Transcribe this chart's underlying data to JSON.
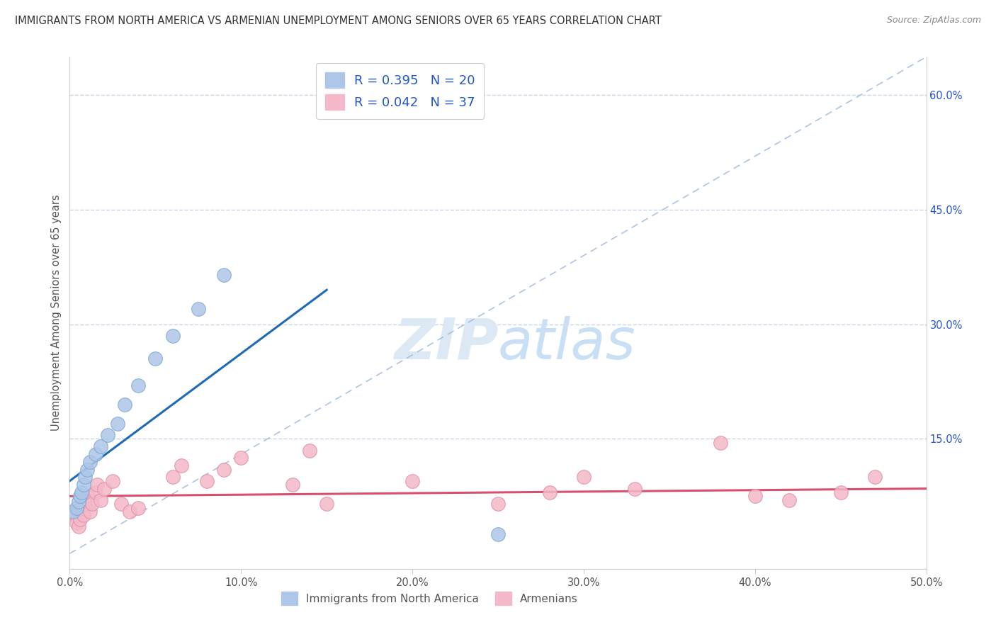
{
  "title": "IMMIGRANTS FROM NORTH AMERICA VS ARMENIAN UNEMPLOYMENT AMONG SENIORS OVER 65 YEARS CORRELATION CHART",
  "source": "Source: ZipAtlas.com",
  "ylabel_left": "Unemployment Among Seniors over 65 years",
  "x_tick_labels": [
    "0.0%",
    "10.0%",
    "20.0%",
    "30.0%",
    "40.0%",
    "50.0%"
  ],
  "x_tick_values": [
    0.0,
    0.1,
    0.2,
    0.3,
    0.4,
    0.5
  ],
  "y_tick_labels_right": [
    "15.0%",
    "30.0%",
    "45.0%",
    "60.0%"
  ],
  "y_tick_values_right": [
    0.15,
    0.3,
    0.45,
    0.6
  ],
  "xlim": [
    0.0,
    0.5
  ],
  "ylim": [
    -0.02,
    0.65
  ],
  "legend_label1_r": "0.395",
  "legend_label1_n": "20",
  "legend_label2_r": "0.042",
  "legend_label2_n": "37",
  "blue_scatter_x": [
    0.002,
    0.004,
    0.005,
    0.006,
    0.007,
    0.008,
    0.009,
    0.01,
    0.012,
    0.015,
    0.018,
    0.022,
    0.028,
    0.032,
    0.04,
    0.05,
    0.06,
    0.075,
    0.09,
    0.25
  ],
  "blue_scatter_y": [
    0.055,
    0.06,
    0.068,
    0.075,
    0.08,
    0.09,
    0.1,
    0.11,
    0.12,
    0.13,
    0.14,
    0.155,
    0.17,
    0.195,
    0.22,
    0.255,
    0.285,
    0.32,
    0.365,
    0.025
  ],
  "pink_scatter_x": [
    0.002,
    0.003,
    0.004,
    0.005,
    0.006,
    0.007,
    0.008,
    0.009,
    0.01,
    0.012,
    0.013,
    0.015,
    0.016,
    0.018,
    0.02,
    0.025,
    0.03,
    0.035,
    0.04,
    0.06,
    0.065,
    0.08,
    0.09,
    0.1,
    0.13,
    0.14,
    0.15,
    0.2,
    0.25,
    0.28,
    0.3,
    0.33,
    0.38,
    0.4,
    0.42,
    0.45,
    0.47
  ],
  "pink_scatter_y": [
    0.055,
    0.05,
    0.04,
    0.035,
    0.045,
    0.06,
    0.05,
    0.065,
    0.075,
    0.055,
    0.065,
    0.08,
    0.09,
    0.07,
    0.085,
    0.095,
    0.065,
    0.055,
    0.06,
    0.1,
    0.115,
    0.095,
    0.11,
    0.125,
    0.09,
    0.135,
    0.065,
    0.095,
    0.065,
    0.08,
    0.1,
    0.085,
    0.145,
    0.075,
    0.07,
    0.08,
    0.1
  ],
  "blue_line_x0": 0.0,
  "blue_line_x1": 0.15,
  "blue_line_y0": 0.095,
  "blue_line_y1": 0.345,
  "pink_line_x0": 0.0,
  "pink_line_x1": 0.5,
  "pink_line_y0": 0.075,
  "pink_line_y1": 0.085,
  "blue_line_color": "#1e6ab5",
  "pink_line_color": "#d94f6e",
  "scatter_blue_color": "#aec6e8",
  "scatter_pink_color": "#f4b8c8",
  "scatter_edge_blue": "#7aaad4",
  "scatter_edge_pink": "#e090a8",
  "watermark_color": "#dce9f5",
  "grid_color": "#c8d4e8",
  "background_color": "#ffffff",
  "legend_label_color": "#2255cc",
  "axis_color": "#cccccc"
}
